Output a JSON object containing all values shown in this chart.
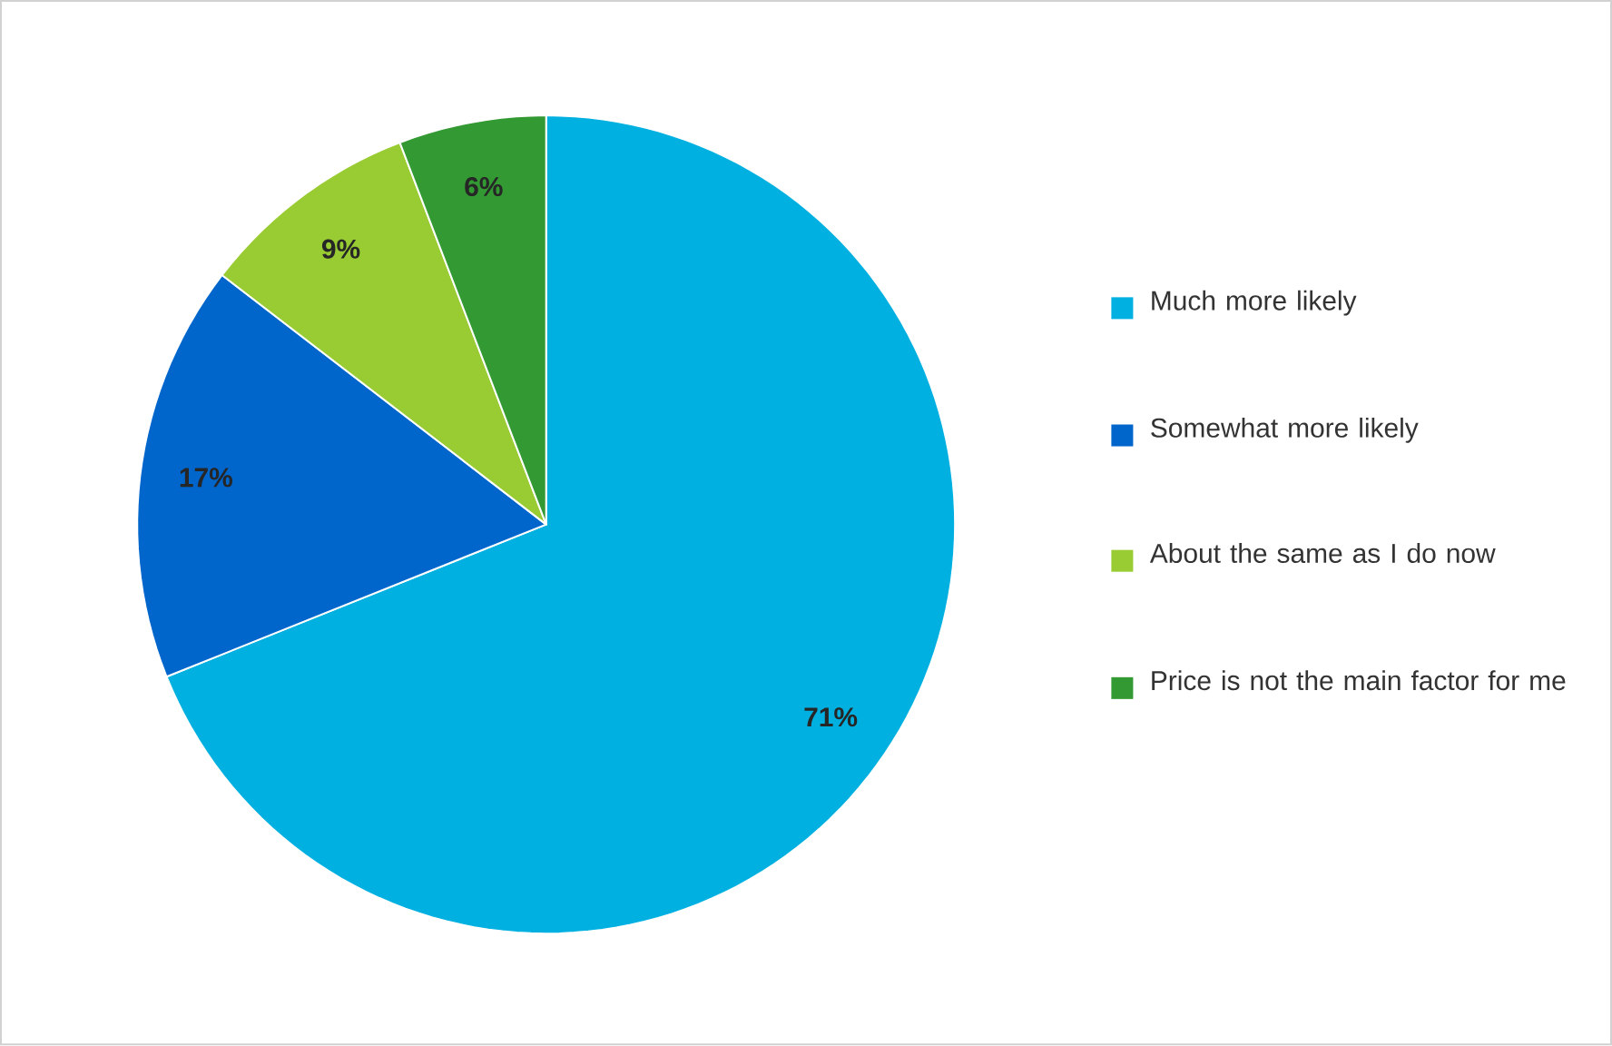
{
  "chart_data": {
    "type": "pie",
    "categories": [
      "Much more likely",
      "Somewhat more likely",
      "About the same as I do now",
      "Price is not the main factor for me"
    ],
    "values": [
      71,
      17,
      9,
      6
    ],
    "colors": [
      "#00b0e0",
      "#0066cc",
      "#99cc33",
      "#339933"
    ],
    "value_labels": [
      "71%",
      "17%",
      "9%",
      "6%"
    ],
    "legend": "right"
  }
}
